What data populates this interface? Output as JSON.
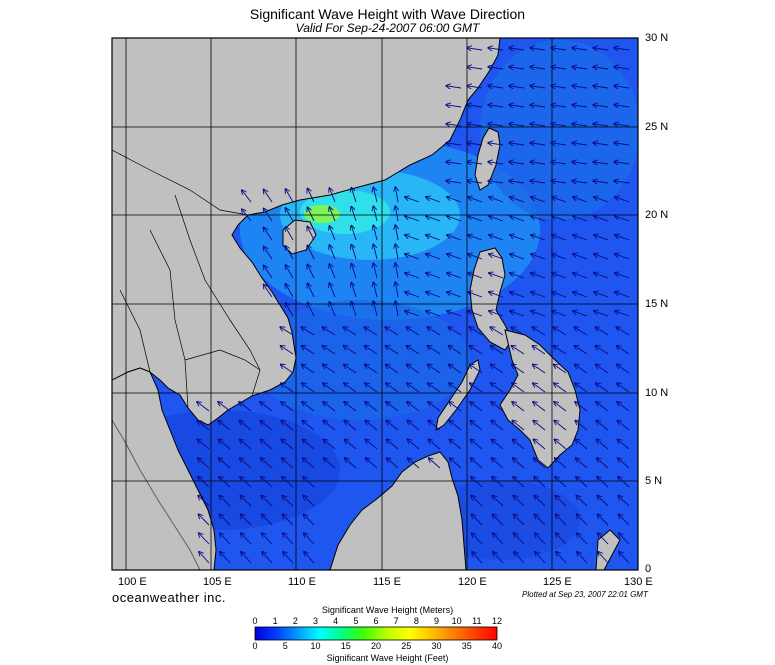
{
  "header": {
    "title": "Significant Wave Height with Wave Direction",
    "subtitle": "Valid For Sep-24-2007 06:00 GMT"
  },
  "map": {
    "region": "South China Sea",
    "lon_range": [
      99,
      130
    ],
    "lat_range": [
      0,
      30
    ],
    "lon_labels": [
      "100 E",
      "105 E",
      "110 E",
      "115 E",
      "120 E",
      "125 E",
      "130 E"
    ],
    "lat_labels": [
      "30 N",
      "25 N",
      "20 N",
      "15 N",
      "10 N",
      "5 N",
      "0"
    ],
    "land_color": "#c0c0c0",
    "sea_color": "#1e56ef",
    "grid": true
  },
  "footer": {
    "brand": "oceanweather inc.",
    "plotted": "Plotted at Sep 23, 2007 22:01 GMT"
  },
  "colorbar": {
    "title_top": "Significant Wave Height (Meters)",
    "title_bottom": "Significant Wave Height (Feet)",
    "meter_ticks": [
      "0",
      "1",
      "2",
      "3",
      "4",
      "5",
      "6",
      "7",
      "8",
      "9",
      "10",
      "11",
      "12"
    ],
    "feet_ticks": [
      "0",
      "5",
      "10",
      "15",
      "20",
      "25",
      "30",
      "35",
      "40"
    ],
    "stops": [
      "#0000e0",
      "#0040ff",
      "#00a0ff",
      "#00ffff",
      "#00ff80",
      "#40ff00",
      "#c0ff00",
      "#ffff00",
      "#ffc000",
      "#ff8000",
      "#ff4000",
      "#ff0000"
    ]
  }
}
